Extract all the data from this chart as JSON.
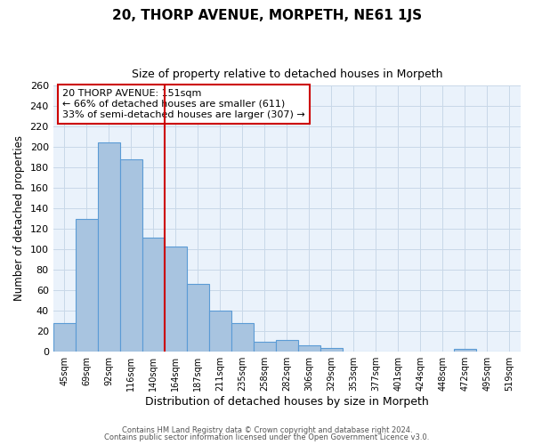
{
  "title": "20, THORP AVENUE, MORPETH, NE61 1JS",
  "subtitle": "Size of property relative to detached houses in Morpeth",
  "xlabel": "Distribution of detached houses by size in Morpeth",
  "ylabel": "Number of detached properties",
  "bar_labels": [
    "45sqm",
    "69sqm",
    "92sqm",
    "116sqm",
    "140sqm",
    "164sqm",
    "187sqm",
    "211sqm",
    "235sqm",
    "258sqm",
    "282sqm",
    "306sqm",
    "329sqm",
    "353sqm",
    "377sqm",
    "401sqm",
    "424sqm",
    "448sqm",
    "472sqm",
    "495sqm",
    "519sqm"
  ],
  "bar_values": [
    28,
    129,
    204,
    188,
    111,
    102,
    66,
    40,
    28,
    9,
    11,
    6,
    3,
    0,
    0,
    0,
    0,
    0,
    2,
    0,
    0
  ],
  "bar_color": "#a8c4e0",
  "bar_edge_color": "#5b9bd5",
  "grid_color": "#c8d8e8",
  "background_color": "#eaf2fb",
  "vline_x": 4.5,
  "vline_color": "#cc0000",
  "annotation_text": "20 THORP AVENUE: 151sqm\n← 66% of detached houses are smaller (611)\n33% of semi-detached houses are larger (307) →",
  "annotation_box_edge_color": "#cc0000",
  "ylim": [
    0,
    260
  ],
  "yticks": [
    0,
    20,
    40,
    60,
    80,
    100,
    120,
    140,
    160,
    180,
    200,
    220,
    240,
    260
  ],
  "footer_line1": "Contains HM Land Registry data © Crown copyright and database right 2024.",
  "footer_line2": "Contains public sector information licensed under the Open Government Licence v3.0."
}
